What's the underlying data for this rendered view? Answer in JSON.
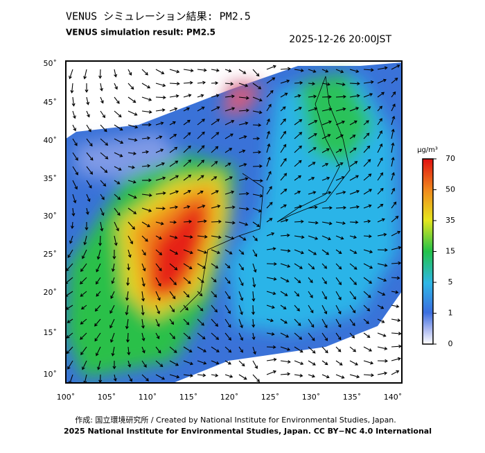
{
  "header": {
    "title": "VENUS シミュレーション結果: PM2.5",
    "subtitle": "VENUS simulation result: PM2.5",
    "timestamp": "2025-12-26 20:00JST"
  },
  "map": {
    "lat_labels": [
      "50˚",
      "45˚",
      "40˚",
      "35˚",
      "30˚",
      "25˚",
      "20˚",
      "15˚",
      "10˚"
    ],
    "lon_labels": [
      "100˚",
      "105˚",
      "110˚",
      "115˚",
      "120˚",
      "125˚",
      "130˚",
      "135˚",
      "140˚"
    ]
  },
  "colorbar": {
    "unit": "µg/m³",
    "labels": [
      70,
      50,
      35,
      15,
      5,
      1,
      0
    ]
  },
  "footer": {
    "credit": "作成: 国立環境研究所 / Created by National Institute for Environmental Studies, Japan.",
    "license": "2025 National Institute for Environmental Studies, Japan. CC BY−NC 4.0 International"
  }
}
